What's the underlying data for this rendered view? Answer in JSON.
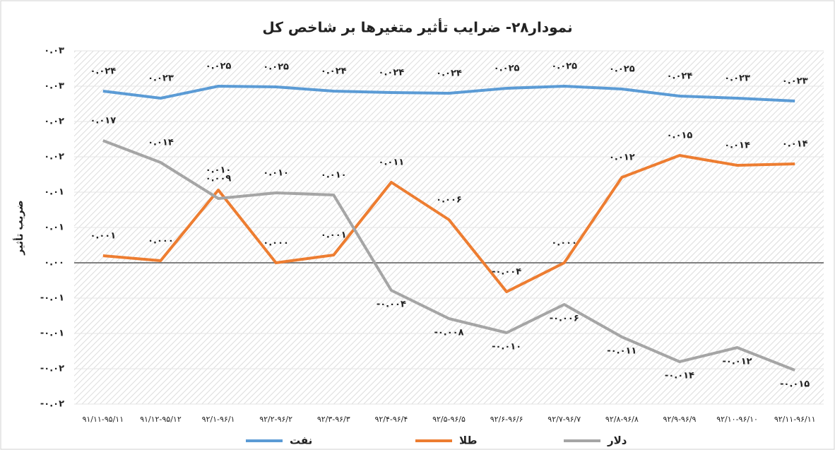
{
  "chart_data": {
    "type": "line",
    "title": "نمودار۲۸- ضرایب تأثیر متغیرها بر شاخص کل",
    "y_label": "ضریب تأثیر",
    "categories": [
      "۹۱/۱۱-۹۵/۱۱",
      "۹۱/۱۲-۹۵/۱۲",
      "۹۲/۱-۹۶/۱",
      "۹۲/۲-۹۶/۲",
      "۹۲/۳-۹۶/۳",
      "۹۲/۴-۹۶/۴",
      "۹۲/۵-۹۶/۵",
      "۹۲/۶-۹۶/۶",
      "۹۲/۷-۹۶/۷",
      "۹۲/۸-۹۶/۸",
      "۹۲/۹-۹۶/۹",
      "۹۲/۱۰-۹۶/۱۰",
      "۹۲/۱۱-۹۶/۱۱"
    ],
    "series": [
      {
        "name": "نفت",
        "color": "#5b9bd5",
        "values": [
          0.0243,
          0.0233,
          0.025,
          0.0249,
          0.0243,
          0.0241,
          0.024,
          0.0247,
          0.025,
          0.0246,
          0.0236,
          0.0233,
          0.0229
        ],
        "value_labels": [
          "۰.۰۲۴",
          "۰.۰۲۳",
          "۰.۰۲۵",
          "۰.۰۲۵",
          "۰.۰۲۴",
          "۰.۰۲۴",
          "۰.۰۲۴",
          "۰.۰۲۵",
          "۰.۰۲۵",
          "۰.۰۲۵",
          "۰.۰۲۴",
          "۰.۰۲۳",
          "۰.۰۲۳"
        ]
      },
      {
        "name": "طلا",
        "color": "#ed7d31",
        "values": [
          0.001,
          0.0003,
          0.0103,
          0,
          0.0011,
          0.0114,
          0.0061,
          -0.0041,
          0,
          0.0121,
          0.0152,
          0.0138,
          0.014
        ],
        "value_labels": [
          "۰.۰۰۱",
          "۰.۰۰۰",
          "۰.۰۱۰",
          "۰.۰۰۰",
          "۰.۰۰۱",
          "۰.۰۱۱",
          "۰.۰۰۶",
          "-۰.۰۰۴",
          "۰.۰۰۰",
          "۰.۰۱۲",
          "۰.۰۱۵",
          "۰.۰۱۴",
          "۰.۰۱۴"
        ]
      },
      {
        "name": "دلار",
        "color": "#a5a5a5",
        "values": [
          0.0173,
          0.0142,
          0.0091,
          0.0099,
          0.0096,
          -0.0039,
          -0.0079,
          -0.0099,
          -0.0059,
          -0.0105,
          -0.014,
          -0.012,
          -0.0152
        ],
        "value_labels": [
          "۰.۰۱۷",
          "۰.۰۱۴",
          "۰.۰۰۹",
          "۰.۰۱۰",
          "۰.۰۱۰",
          "-۰.۰۰۴",
          "-۰.۰۰۸",
          "-۰.۰۱۰",
          "-۰.۰۰۶",
          "-۰.۰۱۱",
          "-۰.۰۱۴",
          "-۰.۰۱۲",
          "-۰.۰۱۵"
        ]
      }
    ],
    "ylim": [
      -0.02,
      0.03
    ],
    "yticks": [
      {
        "value": 0.03,
        "label": "۰.۰۳"
      },
      {
        "value": 0.025,
        "label": "۰.۰۳"
      },
      {
        "value": 0.02,
        "label": "۰.۰۲"
      },
      {
        "value": 0.015,
        "label": "۰.۰۲"
      },
      {
        "value": 0.01,
        "label": "۰.۰۱"
      },
      {
        "value": 0.005,
        "label": "۰.۰۱"
      },
      {
        "value": 0,
        "label": "۰.۰۰"
      },
      {
        "value": -0.005,
        "label": "-۰.۰۱"
      },
      {
        "value": -0.01,
        "label": "-۰.۰۱"
      },
      {
        "value": -0.015,
        "label": "-۰.۰۲"
      },
      {
        "value": -0.02,
        "label": "-۰.۰۲"
      }
    ],
    "grid": true,
    "legend": "bottom"
  }
}
